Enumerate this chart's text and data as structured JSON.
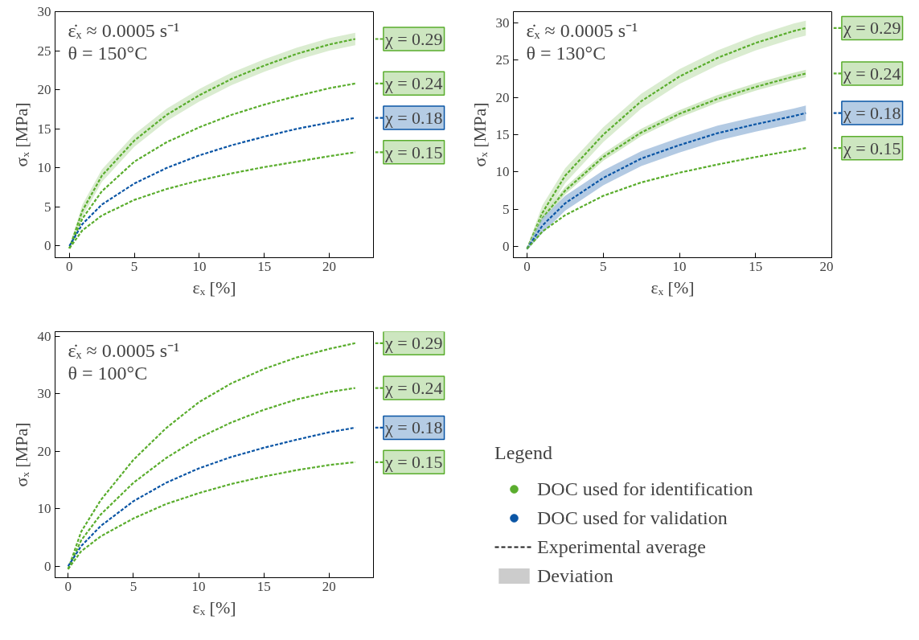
{
  "chart_data": [
    {
      "type": "line",
      "xlabel": "εₓ [%]",
      "ylabel": "σₓ [MPa]",
      "xlim": [
        -1.1,
        23.4
      ],
      "ylim": [
        -1.5,
        30
      ],
      "xticks": [
        0,
        5,
        10,
        15,
        20
      ],
      "yticks": [
        0,
        5,
        10,
        15,
        20,
        25,
        30
      ],
      "grid": false,
      "legend": "right",
      "line_style": "dashed",
      "marker": "none",
      "annotations": [
        "ε̇ₓ ≈ 0.0005 s⁻¹",
        "θ = 150°C"
      ],
      "x": [
        0,
        1,
        2.5,
        5,
        7.5,
        10,
        12.5,
        15,
        17.5,
        20,
        22
      ],
      "series": [
        {
          "name": "χ = 0.29",
          "color": "#5aad2d",
          "values": [
            -0.3,
            4.5,
            9,
            13.5,
            16.8,
            19.3,
            21.4,
            23.1,
            24.6,
            25.8,
            26.5
          ],
          "lower": [
            -0.5,
            3.7,
            8.2,
            12.7,
            16,
            18.5,
            20.6,
            22.3,
            23.8,
            25,
            25.7
          ],
          "upper": [
            -0.1,
            5.3,
            9.8,
            14.3,
            17.6,
            20.1,
            22.2,
            23.9,
            25.4,
            26.6,
            27.3
          ]
        },
        {
          "name": "χ = 0.24",
          "color": "#5aad2d",
          "values": [
            -0.3,
            3.5,
            7,
            10.8,
            13.3,
            15.2,
            16.8,
            18.1,
            19.2,
            20.2,
            20.8
          ]
        },
        {
          "name": "χ = 0.18",
          "color": "#0a55a5",
          "values": [
            0,
            2.8,
            5.3,
            8,
            10,
            11.6,
            12.9,
            14,
            15,
            15.8,
            16.4
          ]
        },
        {
          "name": "χ = 0.15",
          "color": "#5aad2d",
          "values": [
            -0.3,
            2,
            3.9,
            5.9,
            7.3,
            8.4,
            9.3,
            10.1,
            10.8,
            11.5,
            12
          ]
        }
      ]
    },
    {
      "type": "line",
      "xlabel": "εₓ [%]",
      "ylabel": "σₓ [MPa]",
      "xlim": [
        -0.9,
        20
      ],
      "ylim": [
        -1.5,
        31.5
      ],
      "xticks": [
        0,
        5,
        10,
        15,
        20
      ],
      "yticks": [
        0,
        5,
        10,
        15,
        20,
        25,
        30
      ],
      "grid": false,
      "legend": "right",
      "line_style": "dashed",
      "marker": "none",
      "annotations": [
        "ε̇ₓ ≈ 0.0005 s⁻¹",
        "θ = 130°C"
      ],
      "x": [
        0,
        1,
        2.5,
        5,
        7.5,
        10,
        12.5,
        15,
        17.5,
        18.3
      ],
      "series": [
        {
          "name": "χ = 0.29",
          "color": "#5aad2d",
          "values": [
            -0.3,
            4.5,
            9.5,
            15,
            19.5,
            22.8,
            25.3,
            27.3,
            28.9,
            29.3
          ],
          "lower": [
            -0.5,
            3.5,
            8.5,
            14,
            18.5,
            21.8,
            24.3,
            26.3,
            27.9,
            28.3
          ],
          "upper": [
            -0.1,
            5.5,
            10.5,
            16,
            20.5,
            23.8,
            26.3,
            28.3,
            29.9,
            30.3
          ]
        },
        {
          "name": "χ = 0.24",
          "color": "#5aad2d",
          "values": [
            -0.3,
            3.8,
            7.5,
            12,
            15.3,
            17.8,
            19.8,
            21.4,
            22.8,
            23.2
          ],
          "lower": [
            -0.5,
            3.3,
            7,
            11.5,
            14.8,
            17.3,
            19.3,
            20.9,
            22.3,
            22.7
          ],
          "upper": [
            -0.1,
            4.3,
            8,
            12.5,
            15.8,
            18.3,
            20.3,
            21.9,
            23.3,
            23.7
          ]
        },
        {
          "name": "χ = 0.18",
          "color": "#0a55a5",
          "values": [
            -0.3,
            2.8,
            5.8,
            9.2,
            11.8,
            13.6,
            15.2,
            16.4,
            17.5,
            17.9
          ],
          "lower": [
            -0.5,
            1.8,
            4.8,
            8.2,
            10.8,
            12.6,
            14.2,
            15.4,
            16.5,
            16.9
          ],
          "upper": [
            -0.1,
            3.8,
            6.8,
            10.2,
            12.8,
            14.6,
            16.2,
            17.4,
            18.5,
            18.9
          ]
        },
        {
          "name": "χ = 0.15",
          "color": "#5aad2d",
          "values": [
            -0.3,
            2,
            4.2,
            6.8,
            8.6,
            9.9,
            11,
            12,
            12.9,
            13.2
          ]
        }
      ]
    },
    {
      "type": "line",
      "xlabel": "εₓ [%]",
      "ylabel": "σₓ [MPa]",
      "xlim": [
        -1,
        23.4
      ],
      "ylim": [
        -2,
        40.8
      ],
      "xticks": [
        0,
        5,
        10,
        15,
        20
      ],
      "yticks": [
        0,
        10,
        20,
        30,
        40
      ],
      "grid": false,
      "legend": "right",
      "line_style": "dashed",
      "marker": "none",
      "annotations": [
        "ε̇ₓ ≈ 0.0005 s⁻¹",
        "θ = 100°C"
      ],
      "x": [
        0,
        1,
        2.5,
        5,
        7.5,
        10,
        12.5,
        15,
        17.5,
        20,
        22
      ],
      "series": [
        {
          "name": "χ = 0.29",
          "color": "#5aad2d",
          "values": [
            -0.5,
            6,
            11.5,
            18.5,
            24,
            28.5,
            31.8,
            34.3,
            36.3,
            37.8,
            38.8
          ]
        },
        {
          "name": "χ = 0.24",
          "color": "#5aad2d",
          "values": [
            -0.5,
            4.5,
            9,
            14.5,
            18.8,
            22.3,
            25,
            27.2,
            29,
            30.3,
            31
          ]
        },
        {
          "name": "χ = 0.18",
          "color": "#0a55a5",
          "values": [
            0,
            3.5,
            7,
            11.3,
            14.5,
            17,
            19,
            20.6,
            22,
            23.3,
            24.1
          ]
        },
        {
          "name": "χ = 0.15",
          "color": "#5aad2d",
          "values": [
            -0.5,
            2.6,
            5.2,
            8.3,
            10.8,
            12.7,
            14.3,
            15.6,
            16.7,
            17.6,
            18.1
          ]
        }
      ]
    },
    {
      "type": "other",
      "title": "Legend",
      "legend": "left",
      "series": [
        {
          "name": "DOC used for identification",
          "color": "#5aad2d",
          "type": "scatter"
        },
        {
          "name": "DOC used for validation",
          "color": "#0a55a5",
          "type": "scatter"
        },
        {
          "name": "Experimental average",
          "color": "#222222",
          "type": "line"
        },
        {
          "name": "Deviation",
          "color": "#cccccc",
          "type": "area"
        }
      ]
    }
  ]
}
